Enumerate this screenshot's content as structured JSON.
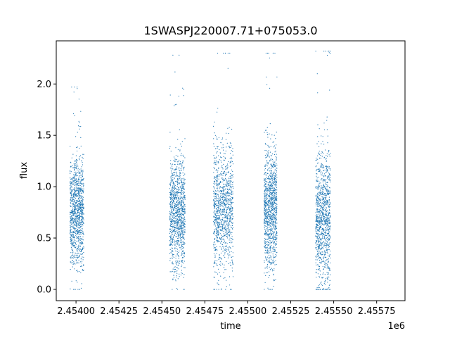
{
  "chart_data": {
    "type": "scatter",
    "title": "1SWASPJ220007.71+075053.0",
    "xlabel": "time",
    "ylabel": "flux",
    "x_offset_label": "1e6",
    "xlim": [
      2453885,
      2455915
    ],
    "ylim": [
      -0.11,
      2.42
    ],
    "grid": false,
    "legend": "none",
    "marker_color": "#1f77b4",
    "x_ticks": [
      2454000,
      2454250,
      2454500,
      2454750,
      2455000,
      2455250,
      2455500,
      2455750
    ],
    "x_tick_labels": [
      "2.45400",
      "2.45425",
      "2.45450",
      "2.45475",
      "2.45500",
      "2.45525",
      "2.45550",
      "2.45575"
    ],
    "y_ticks": [
      0.0,
      0.5,
      1.0,
      1.5,
      2.0
    ],
    "y_tick_labels": [
      "0.0",
      "0.5",
      "1.0",
      "1.5",
      "2.0"
    ],
    "observing_seasons": [
      {
        "x_range": [
          2453965,
          2454045
        ],
        "flux_center": 0.75,
        "flux_spread": 0.27,
        "flux_range": [
          0.0,
          1.97
        ]
      },
      {
        "x_range": [
          2454545,
          2454635
        ],
        "flux_center": 0.75,
        "flux_spread": 0.28,
        "flux_range": [
          0.0,
          2.28
        ]
      },
      {
        "x_range": [
          2454800,
          2454915
        ],
        "flux_center": 0.78,
        "flux_spread": 0.3,
        "flux_range": [
          0.0,
          2.3
        ]
      },
      {
        "x_range": [
          2455095,
          2455170
        ],
        "flux_center": 0.78,
        "flux_spread": 0.3,
        "flux_range": [
          0.0,
          2.3
        ]
      },
      {
        "x_range": [
          2455395,
          2455480
        ],
        "flux_center": 0.7,
        "flux_spread": 0.33,
        "flux_range": [
          0.0,
          2.32
        ]
      }
    ]
  }
}
